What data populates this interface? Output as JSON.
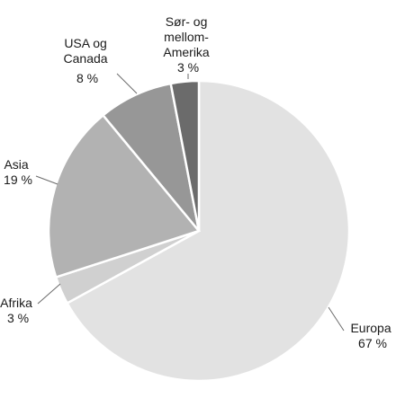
{
  "chart_data": {
    "type": "pie",
    "slices": [
      {
        "label": "Europa",
        "value": 67,
        "value_label": "67 %",
        "color": "#e2e2e2"
      },
      {
        "label": "Afrika",
        "value": 3,
        "value_label": "3 %",
        "color": "#d0d0d0"
      },
      {
        "label": "Asia",
        "value": 19,
        "value_label": "19 %",
        "color": "#b2b2b2"
      },
      {
        "label": "USA og Canada",
        "value": 8,
        "value_label": "8 %",
        "color": "#979797"
      },
      {
        "label": "Sør- og mellom-Amerika",
        "value": 3,
        "value_label": "3 %",
        "color": "#6b6b6b"
      }
    ],
    "start": "12 o'clock",
    "direction": "clockwise",
    "legend": "none"
  },
  "labels": {
    "europa": [
      "Europa",
      "67 %"
    ],
    "afrika": [
      "Afrika",
      "3 %"
    ],
    "asia": [
      "Asia",
      "19 %"
    ],
    "usa": [
      "USA og",
      "Canada",
      "8 %"
    ],
    "sor": [
      "Sør- og",
      "mellom-",
      "Amerika",
      "3 %"
    ]
  }
}
